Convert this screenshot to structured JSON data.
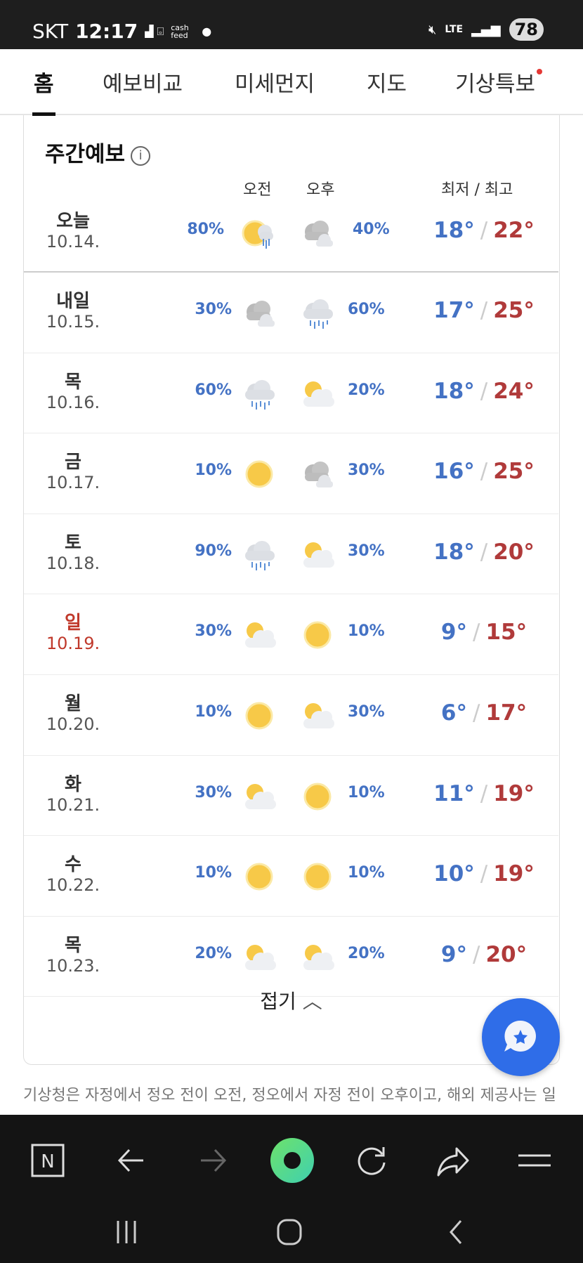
{
  "status": {
    "carrier": "SKT",
    "time": "12:17",
    "network": "LTE",
    "battery": "78",
    "app_label": "cash feed"
  },
  "tabs": [
    {
      "label": "홈",
      "active": true
    },
    {
      "label": "예보비교"
    },
    {
      "label": "미세먼지"
    },
    {
      "label": "지도"
    },
    {
      "label": "기상특보",
      "alert_dot": true
    }
  ],
  "weekly": {
    "title": "주간예보",
    "am_label": "오전",
    "pm_label": "오후",
    "temp_label": "최저 / 최고",
    "days": [
      {
        "day": "오늘",
        "date": "10.14.",
        "am_pct": "80%",
        "am_icon": "sun-rain",
        "pm_icon": "cloudy",
        "pm_pct": "40%",
        "low": "18°",
        "high": "22°"
      },
      {
        "day": "내일",
        "date": "10.15.",
        "am_pct": "30%",
        "am_icon": "cloudy",
        "pm_icon": "rain",
        "pm_pct": "60%",
        "low": "17°",
        "high": "25°"
      },
      {
        "day": "목",
        "date": "10.16.",
        "am_pct": "60%",
        "am_icon": "rain",
        "pm_icon": "partly-cloudy",
        "pm_pct": "20%",
        "low": "18°",
        "high": "24°"
      },
      {
        "day": "금",
        "date": "10.17.",
        "am_pct": "10%",
        "am_icon": "sunny",
        "pm_icon": "cloudy",
        "pm_pct": "30%",
        "low": "16°",
        "high": "25°"
      },
      {
        "day": "토",
        "date": "10.18.",
        "am_pct": "90%",
        "am_icon": "rain",
        "pm_icon": "partly-cloudy",
        "pm_pct": "30%",
        "low": "18°",
        "high": "20°"
      },
      {
        "day": "일",
        "date": "10.19.",
        "sunday": true,
        "am_pct": "30%",
        "am_icon": "partly-cloudy",
        "pm_icon": "sunny",
        "pm_pct": "10%",
        "low": "9°",
        "high": "15°"
      },
      {
        "day": "월",
        "date": "10.20.",
        "am_pct": "10%",
        "am_icon": "sunny",
        "pm_icon": "partly-cloudy",
        "pm_pct": "30%",
        "low": "6°",
        "high": "17°"
      },
      {
        "day": "화",
        "date": "10.21.",
        "am_pct": "30%",
        "am_icon": "partly-cloudy",
        "pm_icon": "sunny",
        "pm_pct": "10%",
        "low": "11°",
        "high": "19°"
      },
      {
        "day": "수",
        "date": "10.22.",
        "am_pct": "10%",
        "am_icon": "sunny",
        "pm_icon": "sunny",
        "pm_pct": "10%",
        "low": "10°",
        "high": "19°"
      },
      {
        "day": "목",
        "date": "10.23.",
        "am_pct": "20%",
        "am_icon": "partly-cloudy",
        "pm_icon": "partly-cloudy",
        "pm_pct": "20%",
        "low": "9°",
        "high": "20°"
      }
    ],
    "fold_label": "접기"
  },
  "note": "기상청은 자정에서 정오 전이 오전, 정오에서 자정 전이 오후이고, 해외 제공사는 일출부터 일몰 전이 낮, 일몰부터 일출 전이 밤입니다.",
  "colors": {
    "low": "#4472c4",
    "high": "#b03a3a",
    "fab": "#2f6de8",
    "accent_green": "#5ddc7a"
  }
}
